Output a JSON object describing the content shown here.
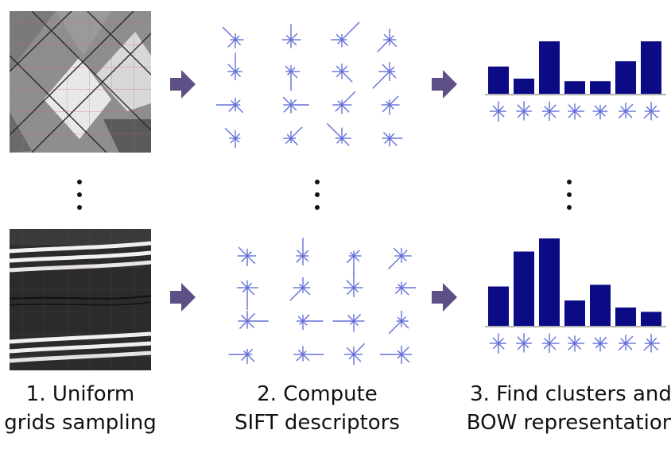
{
  "captions": {
    "step1": {
      "line1": "1. Uniform",
      "line2": "grids sampling"
    },
    "step2": {
      "line1": "2. Compute",
      "line2": "SIFT descriptors"
    },
    "step3": {
      "line1": "3. Find clusters and",
      "line2": "BOW representation"
    }
  },
  "colors": {
    "arrow": "#5e4f86",
    "descriptor": "#6470d8",
    "bar": "#0b0b85",
    "ellipsis": "#111111",
    "texture_top": "#8a8a8a",
    "texture_bottom": "#2a2a2a"
  },
  "histograms": [
    {
      "name": "top-histogram",
      "values": [
        0.52,
        0.29,
        1.0,
        0.24,
        0.24,
        0.62,
        1.0
      ]
    },
    {
      "name": "bottom-histogram",
      "values": [
        0.45,
        0.85,
        1.0,
        0.29,
        0.47,
        0.21,
        0.16
      ]
    }
  ]
}
